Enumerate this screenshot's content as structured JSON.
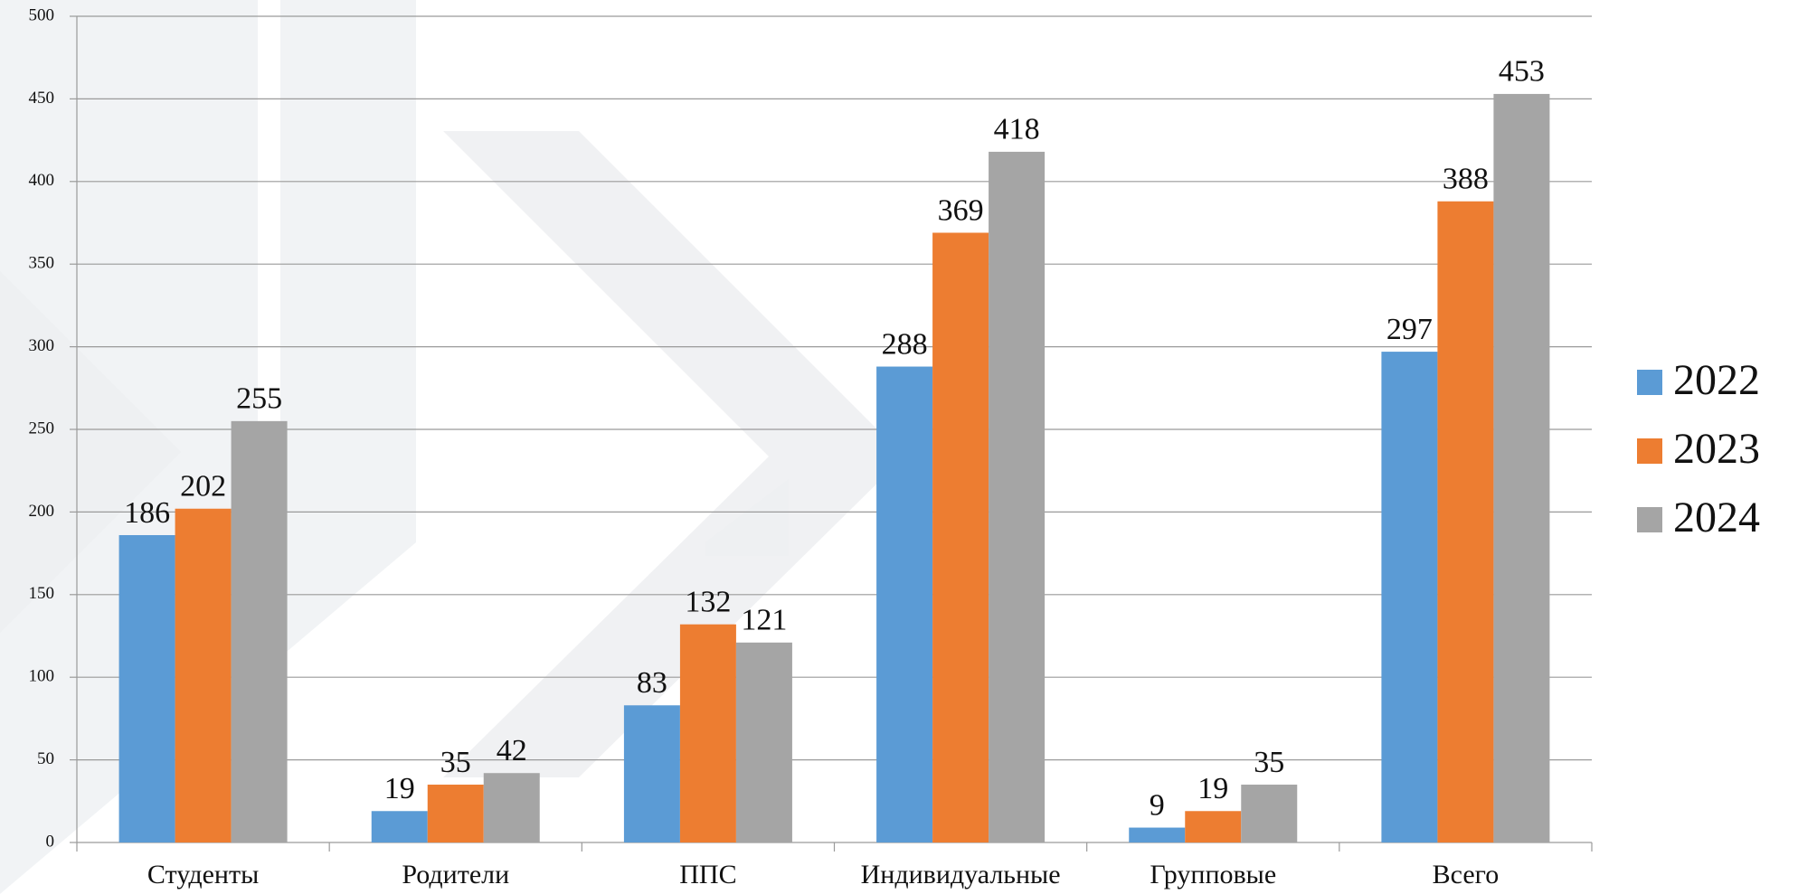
{
  "chart_data": {
    "type": "bar",
    "categories": [
      "Студенты",
      "Родители",
      "ППС",
      "Индивидуальные",
      "Групповые",
      "Всего"
    ],
    "series": [
      {
        "name": "2022",
        "color": "#5b9bd5",
        "values": [
          186,
          19,
          83,
          288,
          9,
          297
        ]
      },
      {
        "name": "2023",
        "color": "#ed7d31",
        "values": [
          202,
          35,
          132,
          369,
          19,
          388
        ]
      },
      {
        "name": "2024",
        "color": "#a5a5a5",
        "values": [
          255,
          42,
          121,
          418,
          35,
          453
        ]
      }
    ],
    "ylim": [
      0,
      500
    ],
    "yticks": [
      0,
      50,
      100,
      150,
      200,
      250,
      300,
      350,
      400,
      450,
      500
    ],
    "grid": true,
    "legend": "right"
  }
}
